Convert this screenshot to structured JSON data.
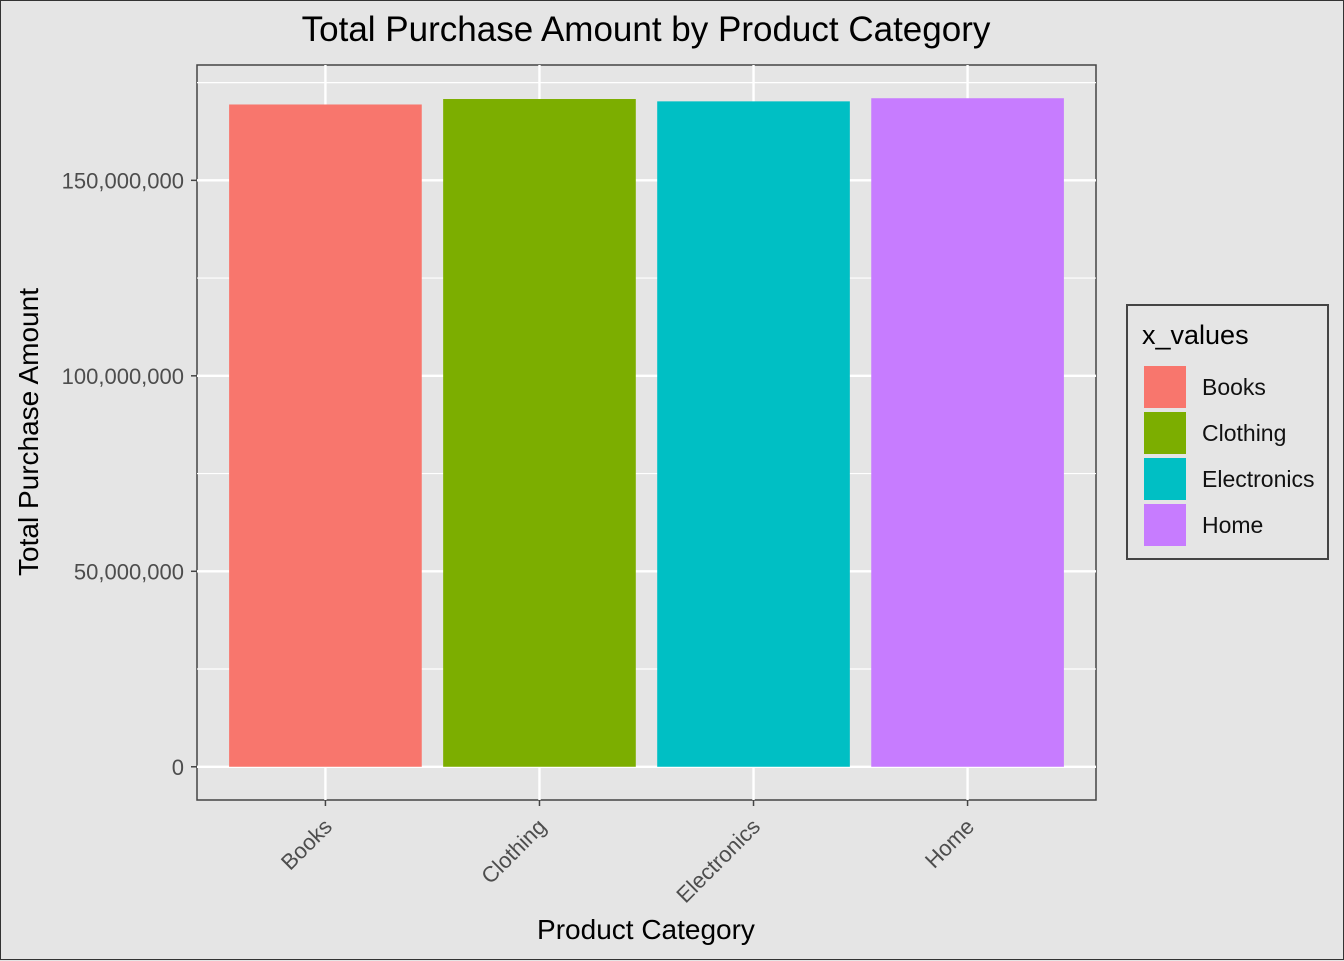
{
  "chart_data": {
    "type": "bar",
    "title": "Total Purchase Amount by Product Category",
    "xlabel": "Product Category",
    "ylabel": "Total Purchase Amount",
    "categories": [
      "Books",
      "Clothing",
      "Electronics",
      "Home"
    ],
    "values": [
      169400000,
      170800000,
      170200000,
      171000000
    ],
    "colors": [
      "#f8766d",
      "#7cae00",
      "#00bfc4",
      "#c77cff"
    ],
    "ylim": [
      -8500000,
      179500000
    ],
    "yticks": [
      0,
      50000000,
      100000000,
      150000000
    ],
    "ytick_labels": [
      "0",
      "50,000,000",
      "100,000,000",
      "150,000,000"
    ],
    "grid": true,
    "legend": {
      "title": "x_values",
      "placement": "right",
      "items": [
        "Books",
        "Clothing",
        "Electronics",
        "Home"
      ]
    }
  }
}
